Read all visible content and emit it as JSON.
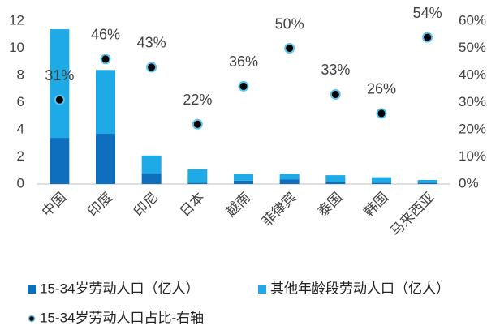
{
  "chart_data": {
    "type": "bar",
    "categories": [
      "中国",
      "印度",
      "印尼",
      "日本",
      "越南",
      "菲律宾",
      "泰国",
      "韩国",
      "马来西亚"
    ],
    "series": [
      {
        "name": "15-34岁劳动人口（亿人）",
        "color": "#0e6fbe",
        "values": [
          3.4,
          3.7,
          0.8,
          0.1,
          0.25,
          0.35,
          0.15,
          0.1,
          0.1
        ]
      },
      {
        "name": "其他年龄段劳动人口（亿人）",
        "color": "#1daae6",
        "values": [
          8.0,
          4.7,
          1.3,
          1.0,
          0.5,
          0.4,
          0.5,
          0.4,
          0.2
        ]
      },
      {
        "name": "15-34岁劳动人口占比-右轴",
        "type": "scatter",
        "axis": "y2",
        "color": "#000000",
        "values": [
          31,
          46,
          43,
          22,
          36,
          50,
          33,
          26,
          54
        ],
        "value_labels": [
          "31%",
          "46%",
          "43%",
          "22%",
          "36%",
          "50%",
          "33%",
          "26%",
          "54%"
        ]
      }
    ],
    "ylim": [
      0,
      12
    ],
    "yticks": [
      0,
      2,
      4,
      6,
      8,
      10,
      12
    ],
    "y2lim": [
      0,
      60
    ],
    "y2ticks": [
      {
        "value": 0,
        "label": "0%"
      },
      {
        "value": 10,
        "label": "10%"
      },
      {
        "value": 20,
        "label": "20%"
      },
      {
        "value": 30,
        "label": "30%"
      },
      {
        "value": 40,
        "label": "40%"
      },
      {
        "value": 50,
        "label": "50%"
      },
      {
        "value": 60,
        "label": "60%"
      }
    ],
    "stacked": true,
    "legend": "bottom"
  }
}
